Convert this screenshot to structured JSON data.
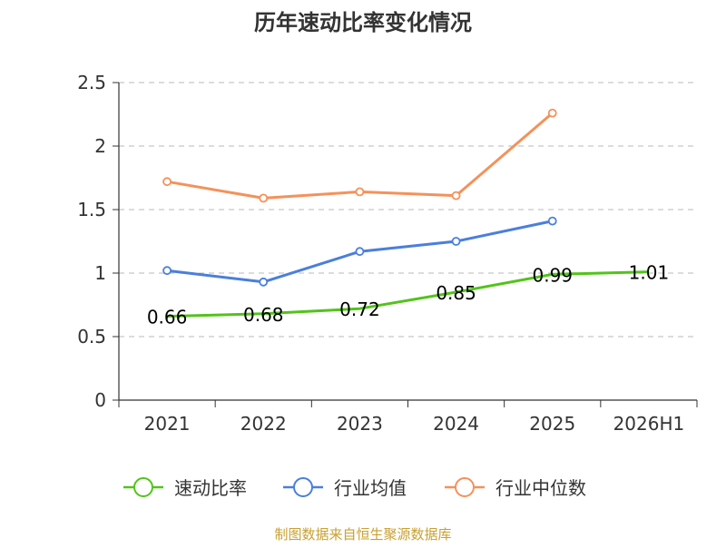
{
  "chart_data": {
    "type": "line",
    "title": "历年速动比率变化情况",
    "categories": [
      "2021",
      "2022",
      "2023",
      "2024",
      "2025",
      "2026H1"
    ],
    "ylim": [
      0,
      2.5
    ],
    "yticks": [
      "0",
      "0.5",
      "1",
      "1.5",
      "2",
      "2.5"
    ],
    "grid": true,
    "legend_position": "bottom",
    "series": [
      {
        "name": "速动比率",
        "color": "#52c41a",
        "values": [
          0.66,
          0.68,
          0.72,
          0.85,
          0.99,
          1.01
        ],
        "labels": [
          "0.66",
          "0.68",
          "0.72",
          "0.85",
          "0.99",
          "1.01"
        ],
        "show_labels": true,
        "show_markers": false
      },
      {
        "name": "行业均值",
        "color": "#4a7fdc",
        "values": [
          1.02,
          0.93,
          1.17,
          1.25,
          1.41,
          null
        ],
        "show_labels": false,
        "show_markers": true
      },
      {
        "name": "行业中位数",
        "color": "#f5915a",
        "values": [
          1.72,
          1.59,
          1.64,
          1.61,
          2.26,
          null
        ],
        "show_labels": false,
        "show_markers": true
      }
    ],
    "source": "制图数据来自恒生聚源数据库"
  }
}
